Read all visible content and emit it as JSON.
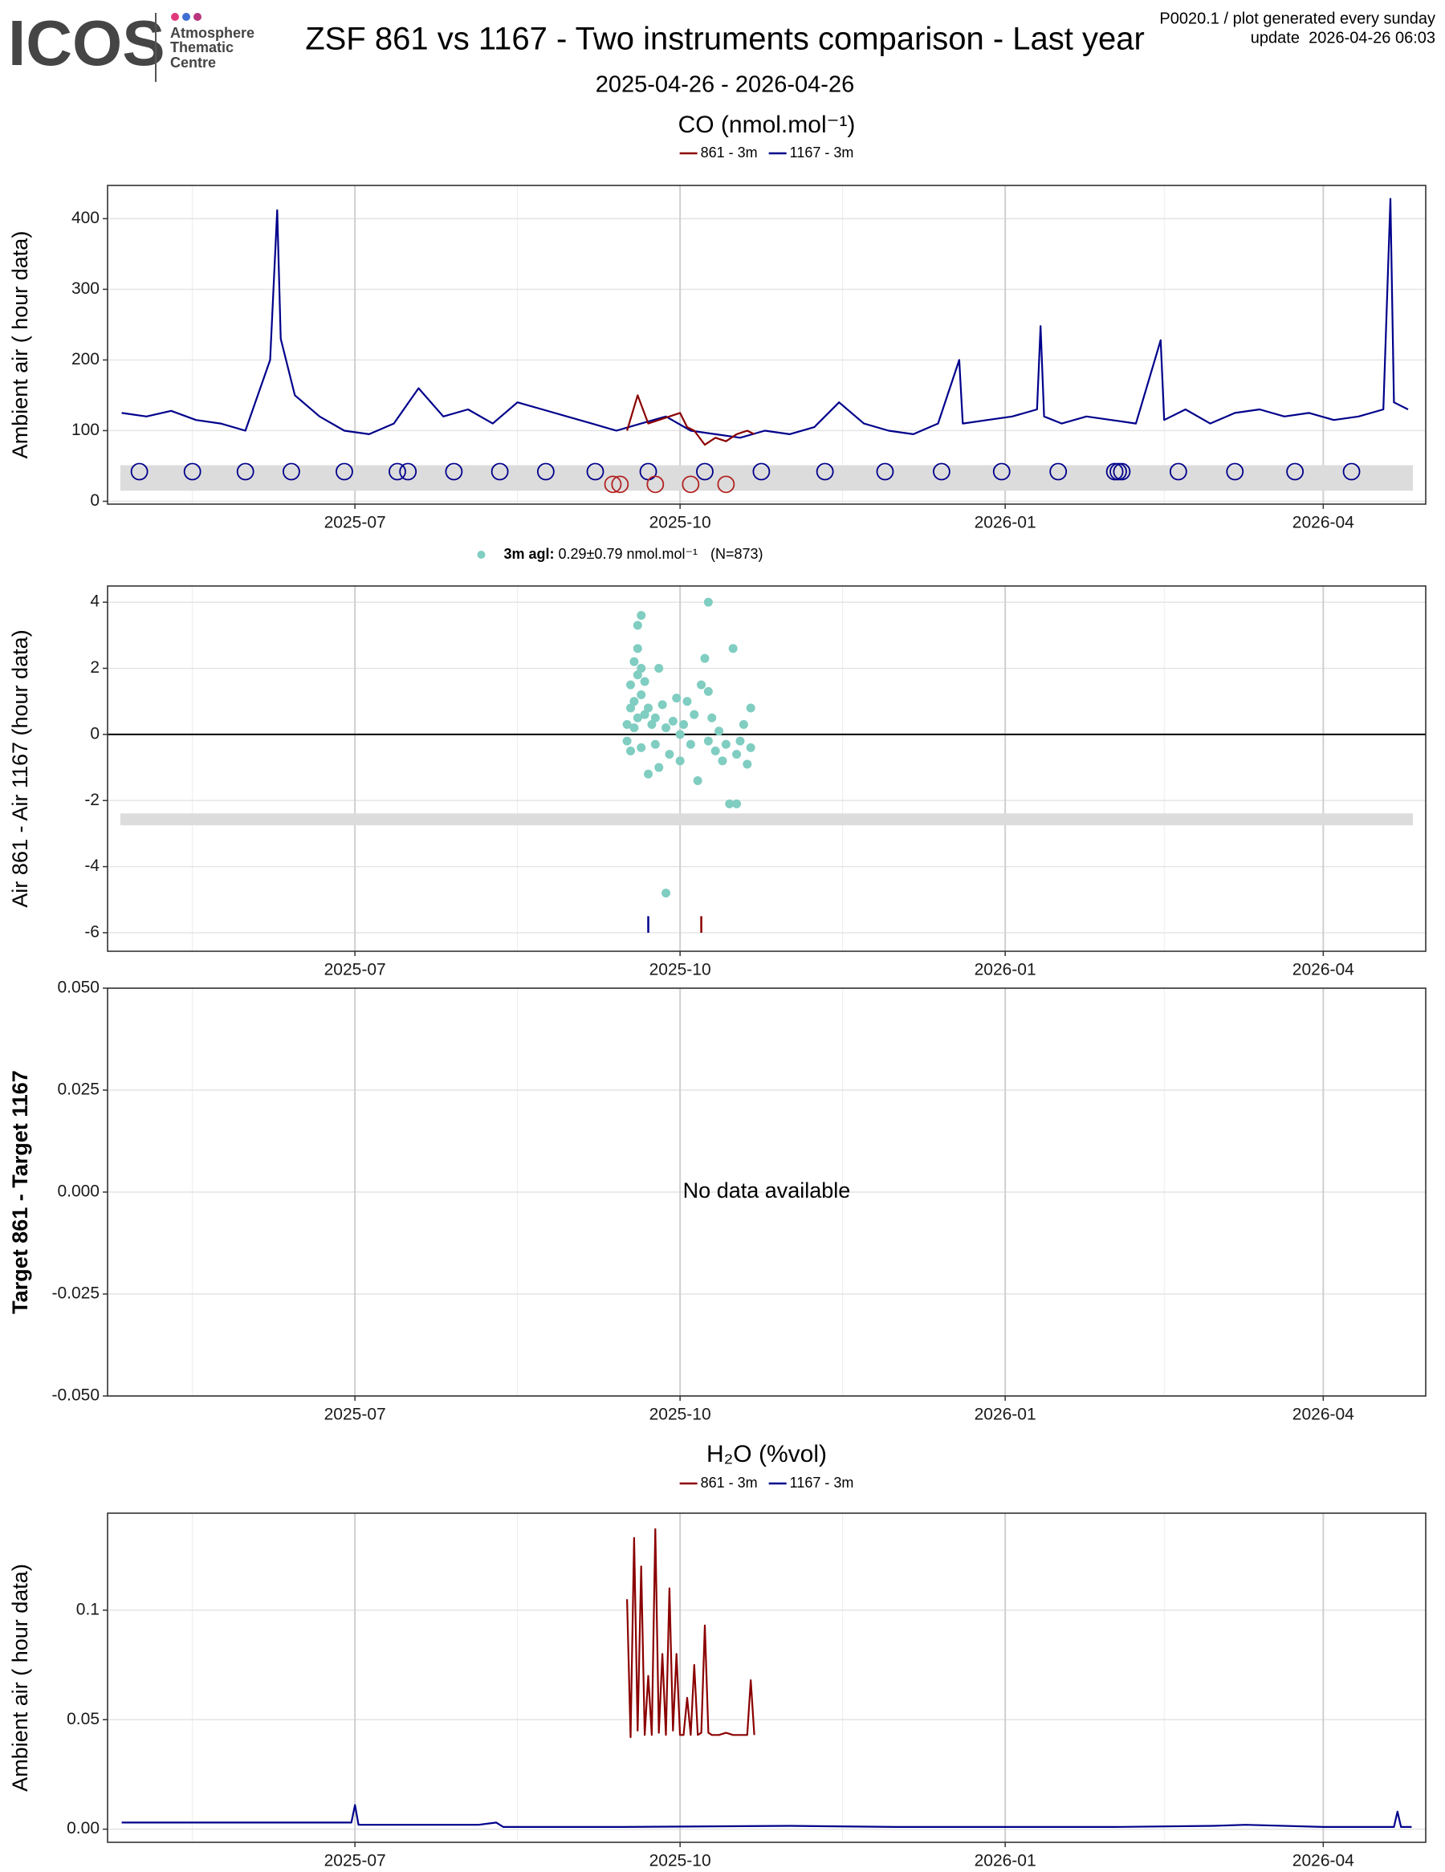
{
  "header": {
    "logo": "ICOS",
    "logo_sub": [
      "Atmosphere",
      "Thematic",
      "Centre"
    ],
    "title": "ZSF 861 vs 1167 - Two instruments comparison - Last year",
    "subtitle": "2025-04-26 - 2026-04-26",
    "note": "P0020.1 / plot generated every sunday",
    "update": "update  2026-04-26 06:03"
  },
  "chart_data": [
    {
      "type": "line",
      "title": "CO (nmol.mol⁻¹)",
      "ylabel": "Ambient air ( hour data)",
      "xlim": [
        "2025-04-22",
        "2026-04-30"
      ],
      "ylim": [
        -4,
        447
      ],
      "xticks": [
        {
          "value": "2025-07-01",
          "label": "2025-07"
        },
        {
          "value": "2025-10-01",
          "label": "2025-10"
        },
        {
          "value": "2026-01-01",
          "label": "2026-01"
        },
        {
          "value": "2026-04-01",
          "label": "2026-04"
        }
      ],
      "minor_xticks": [
        "2025-05-16",
        "2025-08-16",
        "2025-11-16",
        "2026-02-15"
      ],
      "yticks": [
        0,
        100,
        200,
        300,
        400
      ],
      "grid": true,
      "band": [
        15,
        51
      ],
      "series": [
        {
          "name": "861 - 3m",
          "color": "#8b0000",
          "x": [
            "2025-09-16",
            "2025-09-19",
            "2025-09-22",
            "2025-09-25",
            "2025-09-28",
            "2025-10-01",
            "2025-10-03",
            "2025-10-05",
            "2025-10-08",
            "2025-10-11",
            "2025-10-14",
            "2025-10-17",
            "2025-10-20",
            "2025-10-22"
          ],
          "values": [
            100,
            150,
            110,
            115,
            120,
            125,
            105,
            100,
            80,
            90,
            85,
            95,
            100,
            95
          ]
        },
        {
          "name": "1167 - 3m",
          "color": "#00008b",
          "x": [
            "2025-04-26",
            "2025-05-03",
            "2025-05-10",
            "2025-05-17",
            "2025-05-24",
            "2025-05-31",
            "2025-06-07",
            "2025-06-09",
            "2025-06-10",
            "2025-06-14",
            "2025-06-21",
            "2025-06-28",
            "2025-07-05",
            "2025-07-12",
            "2025-07-19",
            "2025-07-26",
            "2025-08-02",
            "2025-08-09",
            "2025-08-16",
            "2025-08-23",
            "2025-08-30",
            "2025-09-06",
            "2025-09-13",
            "2025-09-20",
            "2025-09-27",
            "2025-10-04",
            "2025-10-11",
            "2025-10-18",
            "2025-10-25",
            "2025-11-01",
            "2025-11-08",
            "2025-11-15",
            "2025-11-22",
            "2025-11-29",
            "2025-12-06",
            "2025-12-13",
            "2025-12-19",
            "2025-12-20",
            "2025-12-27",
            "2026-01-03",
            "2026-01-10",
            "2026-01-11",
            "2026-01-12",
            "2026-01-17",
            "2026-01-24",
            "2026-01-31",
            "2026-02-07",
            "2026-02-14",
            "2026-02-15",
            "2026-02-21",
            "2026-02-28",
            "2026-03-07",
            "2026-03-14",
            "2026-03-21",
            "2026-03-28",
            "2026-04-04",
            "2026-04-11",
            "2026-04-18",
            "2026-04-20",
            "2026-04-21",
            "2026-04-25"
          ],
          "values": [
            125,
            120,
            128,
            115,
            110,
            100,
            200,
            412,
            230,
            150,
            120,
            100,
            95,
            110,
            160,
            120,
            130,
            110,
            140,
            130,
            120,
            110,
            100,
            110,
            120,
            100,
            95,
            90,
            100,
            95,
            105,
            140,
            110,
            100,
            95,
            110,
            200,
            110,
            115,
            120,
            130,
            248,
            120,
            110,
            120,
            115,
            110,
            228,
            115,
            130,
            110,
            125,
            130,
            120,
            125,
            115,
            120,
            130,
            428,
            140,
            130
          ]
        }
      ],
      "points": [
        {
          "color": "#00008b",
          "x": [
            "2025-05-01",
            "2025-05-16",
            "2025-05-31",
            "2025-06-13",
            "2025-06-28",
            "2025-07-13",
            "2025-07-16",
            "2025-07-29",
            "2025-08-11",
            "2025-08-24",
            "2025-09-07",
            "2025-09-22",
            "2025-10-08",
            "2025-10-24",
            "2025-11-11",
            "2025-11-28",
            "2025-12-14",
            "2025-12-31",
            "2026-01-16",
            "2026-02-01",
            "2026-02-02",
            "2026-02-03",
            "2026-02-19",
            "2026-03-07",
            "2026-03-24",
            "2026-04-09"
          ],
          "y": [
            42,
            42,
            42,
            42,
            42,
            42,
            42,
            42,
            42,
            42,
            42,
            42,
            42,
            42,
            42,
            42,
            42,
            42,
            42,
            42,
            42,
            42,
            42,
            42,
            42,
            42
          ]
        },
        {
          "color": "#b22222",
          "x": [
            "2025-09-12",
            "2025-09-14",
            "2025-09-24",
            "2025-10-04",
            "2025-10-14"
          ],
          "y": [
            24,
            24,
            24,
            24,
            24
          ]
        }
      ]
    },
    {
      "type": "scatter",
      "ylabel": "Air 861 - Air 1167 (hour data)",
      "legend": {
        "label": "3m agl:",
        "stats": "0.29±0.79 nmol.mol⁻¹",
        "n": "(N=873)"
      },
      "xlim": [
        "2025-04-22",
        "2026-04-30"
      ],
      "ylim": [
        -6.56,
        4.49
      ],
      "xticks": [
        {
          "value": "2025-07-01",
          "label": "2025-07"
        },
        {
          "value": "2025-10-01",
          "label": "2025-10"
        },
        {
          "value": "2026-01-01",
          "label": "2026-01"
        },
        {
          "value": "2026-04-01",
          "label": "2026-04"
        }
      ],
      "minor_xticks": [
        "2025-05-16",
        "2025-08-16",
        "2025-11-16",
        "2026-02-15"
      ],
      "yticks": [
        -6,
        -4,
        -2,
        0,
        2,
        4
      ],
      "grid": true,
      "hline": 0,
      "band": [
        -2.75,
        -2.39
      ],
      "series": [
        {
          "color": "#80cdc1",
          "x": [
            "2025-09-16",
            "2025-09-16",
            "2025-09-17",
            "2025-09-17",
            "2025-09-17",
            "2025-09-18",
            "2025-09-18",
            "2025-09-18",
            "2025-09-19",
            "2025-09-19",
            "2025-09-19",
            "2025-09-19",
            "2025-09-20",
            "2025-09-20",
            "2025-09-20",
            "2025-09-20",
            "2025-09-21",
            "2025-09-21",
            "2025-09-22",
            "2025-09-22",
            "2025-09-23",
            "2025-09-24",
            "2025-09-24",
            "2025-09-27",
            "2025-09-25",
            "2025-09-25",
            "2025-09-26",
            "2025-09-27",
            "2025-09-28",
            "2025-09-29",
            "2025-09-30",
            "2025-10-01",
            "2025-10-01",
            "2025-10-02",
            "2025-10-03",
            "2025-10-04",
            "2025-10-05",
            "2025-10-06",
            "2025-10-07",
            "2025-10-09",
            "2025-10-08",
            "2025-10-09",
            "2025-10-09",
            "2025-10-10",
            "2025-10-11",
            "2025-10-12",
            "2025-10-13",
            "2025-10-14",
            "2025-10-15",
            "2025-10-17",
            "2025-10-16",
            "2025-10-17",
            "2025-10-18",
            "2025-10-19",
            "2025-10-20",
            "2025-10-21",
            "2025-10-21"
          ],
          "values": [
            0.3,
            -0.2,
            0.8,
            1.5,
            -0.5,
            2.2,
            1.0,
            0.2,
            3.3,
            2.6,
            1.8,
            0.5,
            3.6,
            2.0,
            1.2,
            -0.4,
            1.6,
            0.6,
            0.8,
            -1.2,
            0.3,
            0.5,
            -0.3,
            -4.8,
            2.0,
            -1.0,
            0.9,
            0.2,
            -0.6,
            0.4,
            1.1,
            0.0,
            -0.8,
            0.3,
            1.0,
            -0.3,
            0.6,
            -1.4,
            1.5,
            4.0,
            2.3,
            1.3,
            -0.2,
            0.5,
            -0.5,
            0.1,
            -0.8,
            -0.3,
            -2.1,
            -2.1,
            2.6,
            -0.6,
            -0.2,
            0.3,
            -0.9,
            0.8,
            -0.4
          ]
        }
      ],
      "segments": [
        {
          "color": "#00008b",
          "x": "2025-09-22",
          "y": [
            -5.5,
            -6.0
          ]
        },
        {
          "color": "#8b0000",
          "x": "2025-10-07",
          "y": [
            -5.5,
            -6.0
          ]
        }
      ]
    },
    {
      "type": "line",
      "ylabel": "Target 861 - Target 1167",
      "ylabel_bold": true,
      "annotation": "No data available",
      "xlim": [
        "2025-04-22",
        "2026-04-30"
      ],
      "ylim": [
        -0.05,
        0.05
      ],
      "xticks": [
        {
          "value": "2025-07-01",
          "label": "2025-07"
        },
        {
          "value": "2025-10-01",
          "label": "2025-10"
        },
        {
          "value": "2026-01-01",
          "label": "2026-01"
        },
        {
          "value": "2026-04-01",
          "label": "2026-04"
        }
      ],
      "minor_xticks": [
        "2025-05-16",
        "2025-08-16",
        "2025-11-16",
        "2026-02-15"
      ],
      "yticks": [
        {
          "value": -0.05,
          "label": "-0.050"
        },
        {
          "value": -0.025,
          "label": "-0.025"
        },
        {
          "value": 0,
          "label": "0.000"
        },
        {
          "value": 0.025,
          "label": "0.025"
        },
        {
          "value": 0.05,
          "label": "0.050"
        }
      ],
      "grid": true,
      "series": []
    },
    {
      "type": "line",
      "title": "H₂O (%vol)",
      "ylabel": "Ambient air ( hour data)",
      "xlim": [
        "2025-04-22",
        "2026-04-30"
      ],
      "ylim": [
        -0.006,
        0.1443
      ],
      "xticks": [
        {
          "value": "2025-07-01",
          "label": "2025-07"
        },
        {
          "value": "2025-10-01",
          "label": "2025-10"
        },
        {
          "value": "2026-01-01",
          "label": "2026-01"
        },
        {
          "value": "2026-04-01",
          "label": "2026-04"
        }
      ],
      "minor_xticks": [
        "2025-05-16",
        "2025-08-16",
        "2025-11-16",
        "2026-02-15"
      ],
      "yticks": [
        {
          "value": 0,
          "label": "0.00"
        },
        0.05,
        0.1
      ],
      "grid": true,
      "series": [
        {
          "name": "861 - 3m",
          "color": "#8b0000",
          "x": [
            "2025-09-16",
            "2025-09-17",
            "2025-09-18",
            "2025-09-19",
            "2025-09-20",
            "2025-09-21",
            "2025-09-22",
            "2025-09-23",
            "2025-09-24",
            "2025-09-25",
            "2025-09-26",
            "2025-09-27",
            "2025-09-28",
            "2025-09-29",
            "2025-09-30",
            "2025-10-01",
            "2025-10-02",
            "2025-10-03",
            "2025-10-04",
            "2025-10-05",
            "2025-10-06",
            "2025-10-07",
            "2025-10-08",
            "2025-10-09",
            "2025-10-10",
            "2025-10-12",
            "2025-10-14",
            "2025-10-16",
            "2025-10-18",
            "2025-10-20",
            "2025-10-21",
            "2025-10-22"
          ],
          "values": [
            0.105,
            0.042,
            0.133,
            0.045,
            0.12,
            0.043,
            0.07,
            0.043,
            0.137,
            0.044,
            0.08,
            0.043,
            0.11,
            0.045,
            0.08,
            0.043,
            0.043,
            0.06,
            0.043,
            0.075,
            0.043,
            0.044,
            0.093,
            0.044,
            0.043,
            0.043,
            0.044,
            0.043,
            0.043,
            0.043,
            0.068,
            0.043
          ]
        },
        {
          "name": "1167 - 3m",
          "color": "#00008b",
          "x": [
            "2025-04-26",
            "2025-05-20",
            "2025-06-15",
            "2025-06-30",
            "2025-07-01",
            "2025-07-02",
            "2025-08-05",
            "2025-08-10",
            "2025-08-12",
            "2025-09-15",
            "2025-11-01",
            "2025-12-01",
            "2026-01-01",
            "2026-02-01",
            "2026-03-01",
            "2026-03-10",
            "2026-04-01",
            "2026-04-21",
            "2026-04-22",
            "2026-04-23",
            "2026-04-26"
          ],
          "values": [
            0.003,
            0.003,
            0.003,
            0.003,
            0.011,
            0.002,
            0.002,
            0.003,
            0.001,
            0.001,
            0.0015,
            0.001,
            0.001,
            0.001,
            0.0015,
            0.002,
            0.001,
            0.001,
            0.008,
            0.001,
            0.001
          ]
        }
      ]
    }
  ]
}
